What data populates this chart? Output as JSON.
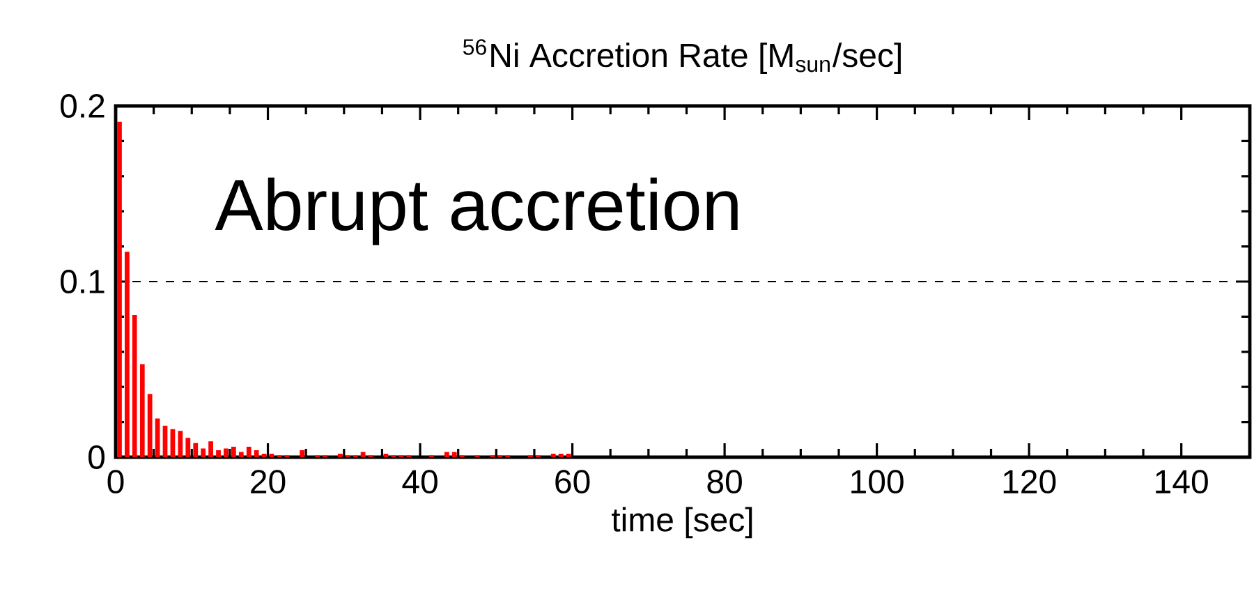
{
  "chart_data": {
    "type": "histogram",
    "title": "$^{56}$Ni Accretion Rate [M$_{sun}$/sec]",
    "xlabel": "time [sec]",
    "annotations": [
      "Abrupt accretion"
    ],
    "bins": [
      0,
      1,
      2,
      3,
      4,
      5,
      6,
      7,
      8,
      9,
      10,
      11,
      12,
      13,
      14,
      15,
      16,
      17,
      18,
      19,
      20,
      21,
      22,
      23,
      24,
      25,
      26,
      27,
      28,
      29,
      30,
      31,
      32,
      33,
      34,
      35,
      36,
      37,
      38,
      39,
      40,
      41,
      42,
      43,
      44,
      45,
      46,
      47,
      48,
      49,
      50,
      51,
      52,
      53,
      54,
      55,
      56,
      57,
      58,
      59,
      60
    ],
    "values": [
      0.191,
      0.117,
      0.081,
      0.053,
      0.036,
      0.022,
      0.018,
      0.016,
      0.015,
      0.011,
      0.008,
      0.005,
      0.009,
      0.004,
      0.005,
      0.006,
      0.003,
      0.006,
      0.004,
      0.002,
      0.002,
      0.001,
      0.001,
      0,
      0.004,
      0,
      0.001,
      0.001,
      0,
      0.002,
      0.001,
      0.001,
      0.003,
      0.001,
      0,
      0.002,
      0.001,
      0.001,
      0.001,
      0,
      0,
      0.001,
      0,
      0.003,
      0.003,
      0.001,
      0,
      0.001,
      0,
      0.001,
      0.001,
      0.001,
      0,
      0,
      0.001,
      0.001,
      0,
      0.002,
      0.002,
      0.002
    ],
    "color": "#ff0000",
    "xlim": [
      0,
      149
    ],
    "ylim": [
      0,
      0.2
    ],
    "xticks": [
      0,
      20,
      40,
      60,
      80,
      100,
      120,
      140
    ],
    "yticks": [
      0,
      0.1,
      0.2
    ],
    "grid": "y",
    "line_style": "dashed"
  }
}
